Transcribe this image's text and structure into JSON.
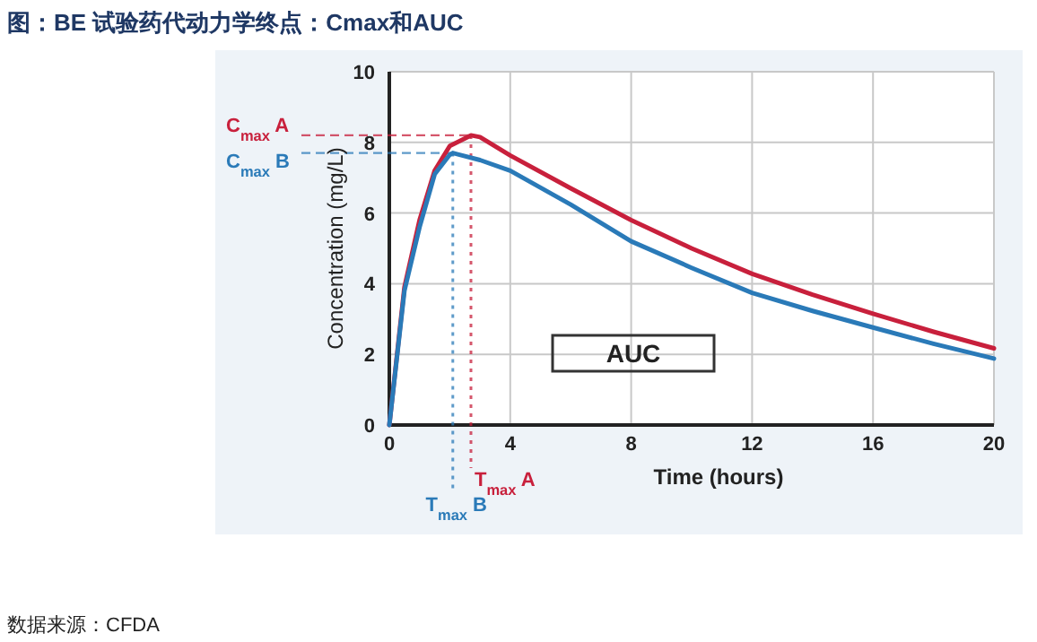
{
  "chart_data": {
    "type": "line",
    "title": "图：BE 试验药代动力学终点：Cmax和AUC",
    "xlabel": "Time (hours)",
    "ylabel": "Concentration (mg/L)",
    "xlim": [
      0,
      20
    ],
    "ylim": [
      0,
      10
    ],
    "xticks": [
      0,
      4,
      8,
      12,
      16,
      20
    ],
    "yticks": [
      0,
      2,
      4,
      6,
      8,
      10
    ],
    "grid": true,
    "marker": "none",
    "line_style": "solid",
    "series": [
      {
        "color": "#c8203c",
        "x": [
          0,
          0.5,
          1,
          1.5,
          2,
          2.7,
          3,
          4,
          6,
          8,
          10,
          12,
          14,
          16,
          18,
          20
        ],
        "values": [
          0,
          3.9,
          5.8,
          7.2,
          7.9,
          8.2,
          8.15,
          7.63,
          6.7,
          5.8,
          5.0,
          4.28,
          3.69,
          3.15,
          2.64,
          2.17
        ]
      },
      {
        "color": "#2a7ab8",
        "x": [
          0,
          0.5,
          1,
          1.5,
          2,
          2.1,
          3,
          4,
          6,
          8,
          10,
          12,
          14,
          16,
          18,
          20
        ],
        "values": [
          0,
          3.8,
          5.6,
          7.1,
          7.65,
          7.7,
          7.5,
          7.2,
          6.24,
          5.2,
          4.45,
          3.74,
          3.23,
          2.76,
          2.3,
          1.88
        ]
      }
    ],
    "ref_lines": [
      {
        "axis": "y",
        "value": 8.2,
        "label": "C$_{max}$ A",
        "color": "#c8203c",
        "line_style": "dashed"
      },
      {
        "axis": "y",
        "value": 7.7,
        "label": "C$_{max}$ B",
        "color": "#2a7ab8",
        "line_style": "dashed"
      },
      {
        "axis": "x",
        "value": 2.7,
        "label": "T$_{max}$ A",
        "color": "#c8203c",
        "line_style": "dotted"
      },
      {
        "axis": "x",
        "value": 2.1,
        "label": "T$_{max}$ B",
        "color": "#2a7ab8",
        "line_style": "dotted"
      }
    ],
    "annotations": [
      "AUC",
      "数据来源：CFDA"
    ]
  }
}
